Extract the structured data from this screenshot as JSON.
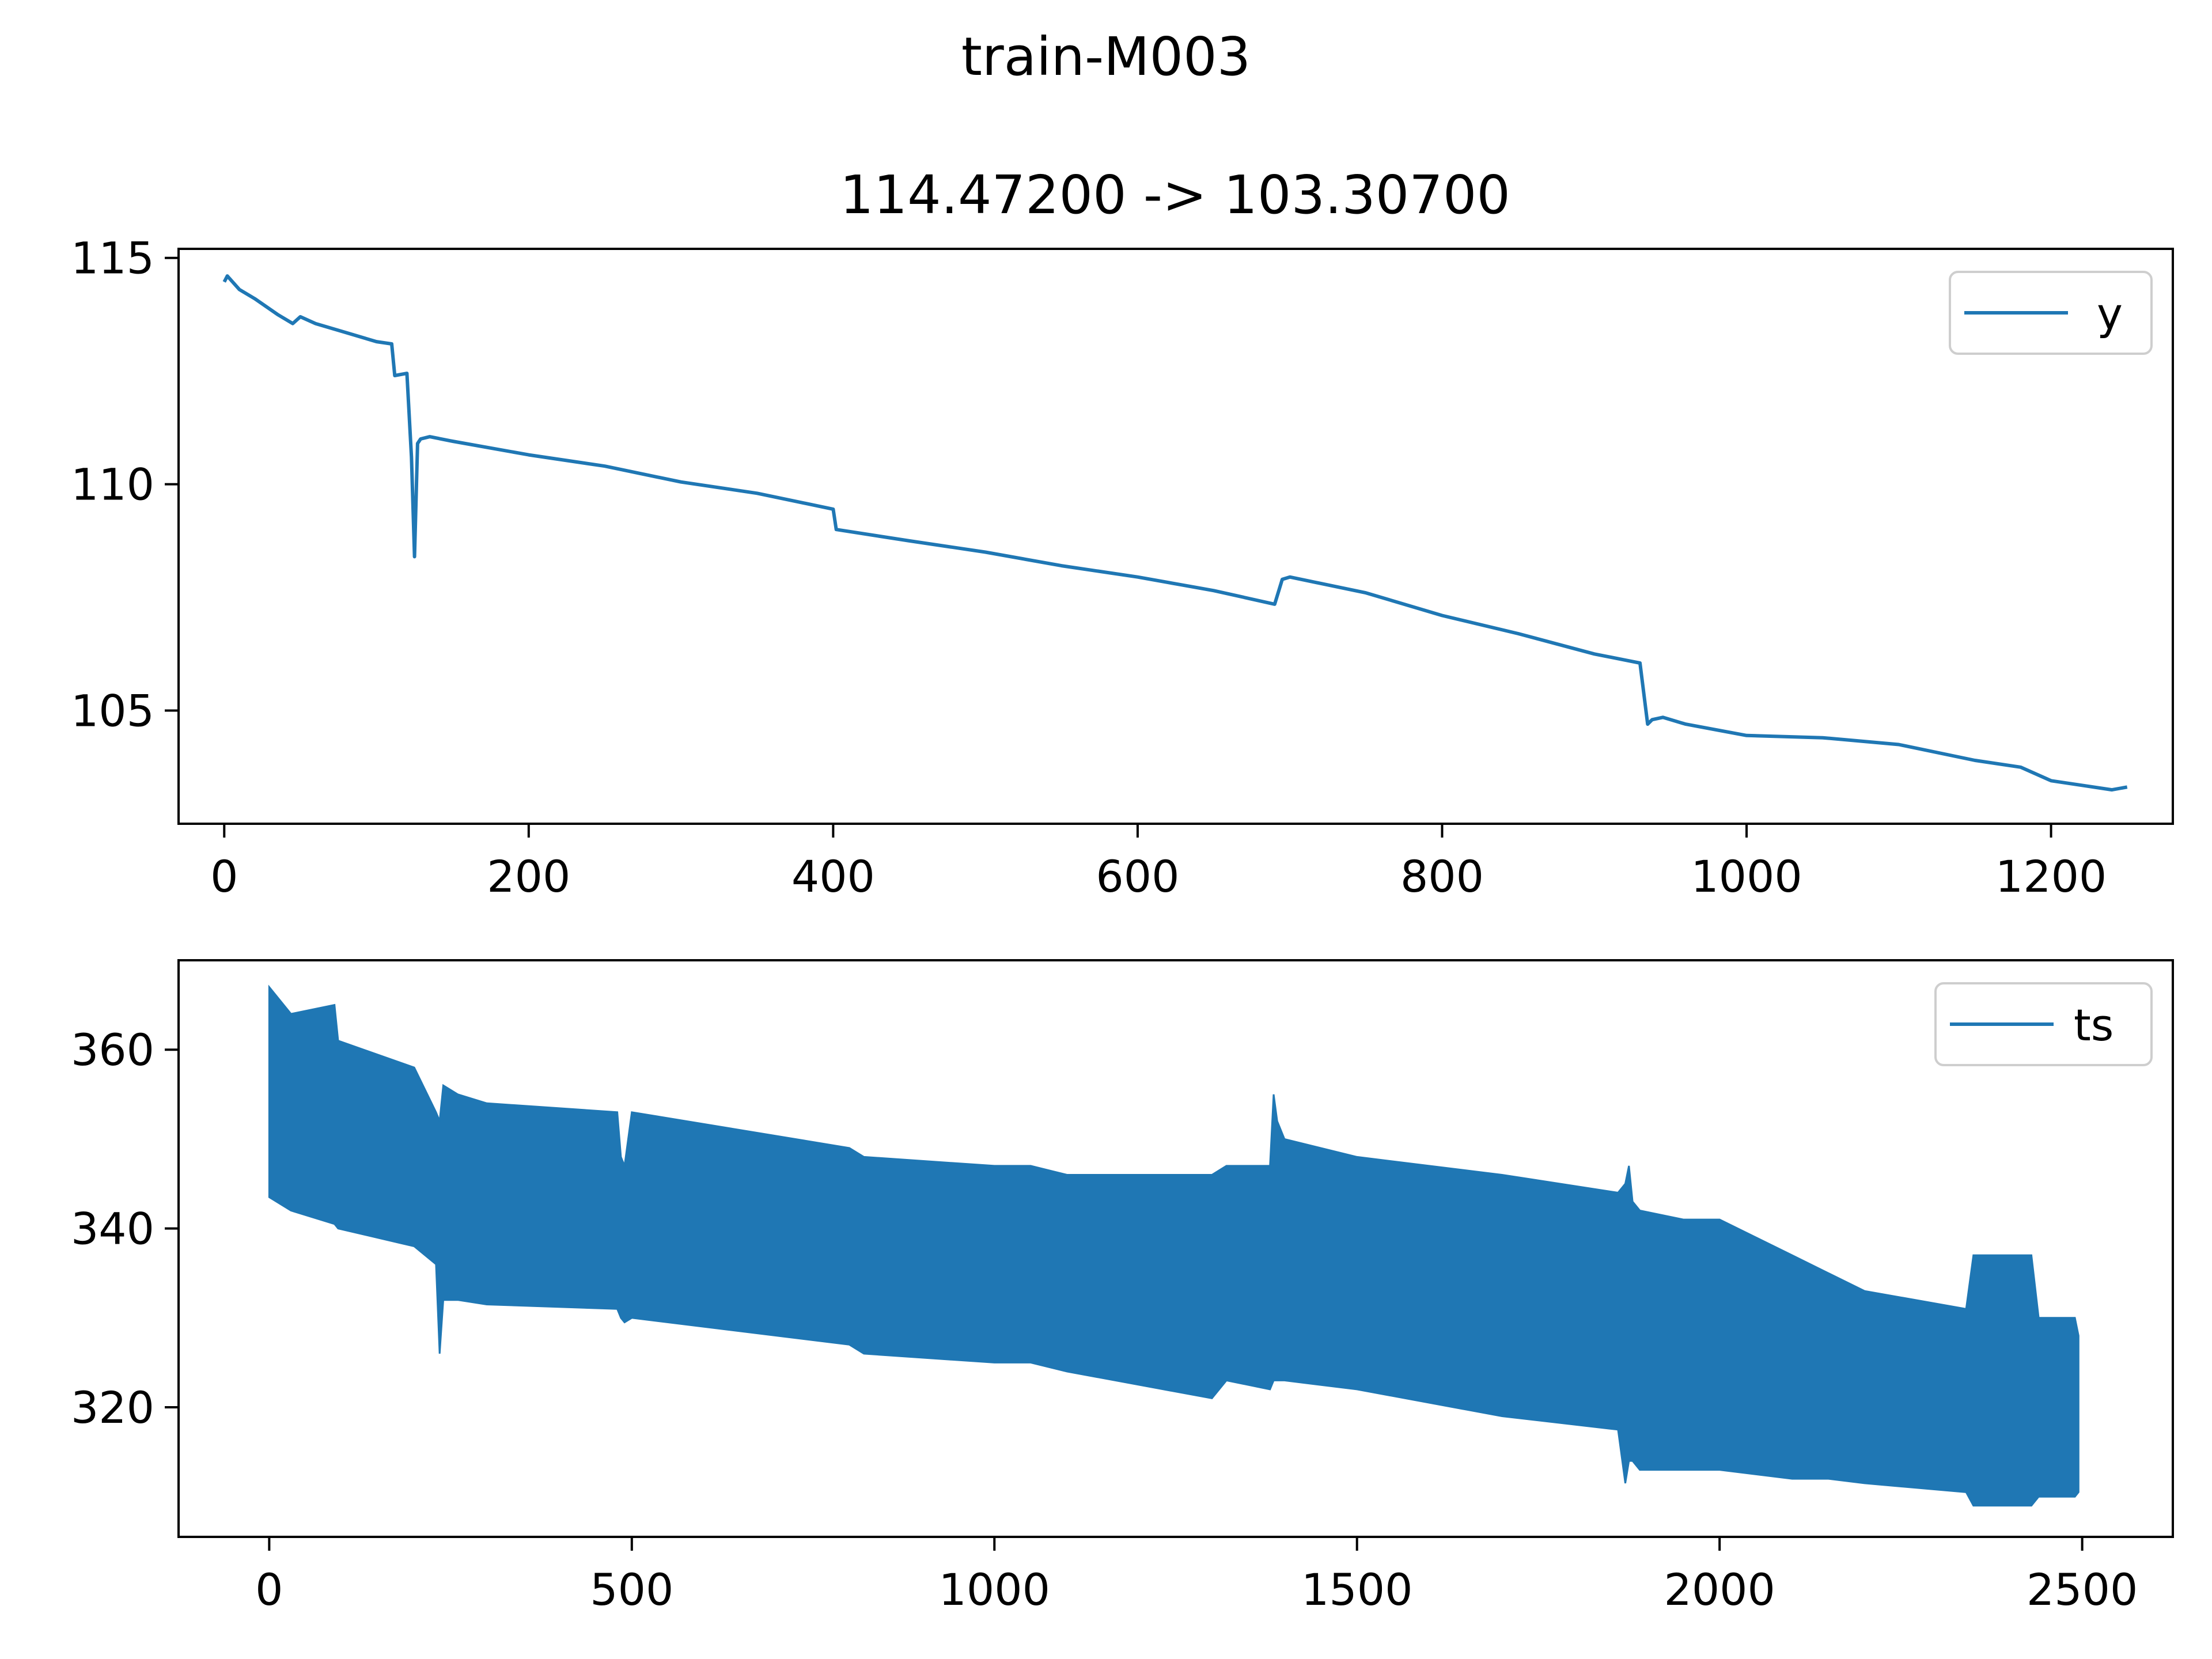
{
  "figure_title": "train-M003",
  "colors": {
    "series": "#1f77b4",
    "background": "#ffffff",
    "axes": "#000000",
    "legend_frame": "#cccccc"
  },
  "chart_data": [
    {
      "type": "line",
      "title": "114.47200 -> 103.30700",
      "xlabel": "",
      "ylabel": "",
      "xlim": [
        -30,
        1280
      ],
      "ylim": [
        102.5,
        115.2
      ],
      "x_ticks": [
        0,
        200,
        400,
        600,
        800,
        1000,
        1200
      ],
      "x_tick_labels": [
        "0",
        "200",
        "400",
        "600",
        "800",
        "1000",
        "1200"
      ],
      "y_ticks": [
        105,
        110,
        115
      ],
      "y_tick_labels": [
        "105",
        "110",
        "115"
      ],
      "grid": false,
      "legend_position": "top-right",
      "series": [
        {
          "name": "y",
          "x": [
            0,
            2,
            10,
            20,
            35,
            45,
            50,
            60,
            80,
            100,
            110,
            112,
            120,
            123,
            125,
            127,
            129,
            135,
            150,
            200,
            250,
            300,
            350,
            400,
            402,
            450,
            500,
            550,
            600,
            650,
            690,
            695,
            700,
            750,
            800,
            850,
            900,
            930,
            935,
            938,
            945,
            960,
            1000,
            1050,
            1100,
            1150,
            1180,
            1200,
            1220,
            1240,
            1250
          ],
          "y": [
            114.47,
            114.6,
            114.3,
            114.1,
            113.75,
            113.55,
            113.7,
            113.55,
            113.35,
            113.15,
            113.1,
            112.4,
            112.45,
            110.6,
            108.4,
            110.9,
            111.0,
            111.05,
            110.95,
            110.65,
            110.4,
            110.05,
            109.8,
            109.45,
            109.0,
            108.75,
            108.5,
            108.2,
            107.95,
            107.65,
            107.35,
            107.9,
            107.95,
            107.6,
            107.1,
            106.7,
            106.25,
            106.05,
            104.7,
            104.8,
            104.85,
            104.7,
            104.45,
            104.4,
            104.25,
            103.9,
            103.75,
            103.45,
            103.35,
            103.25,
            103.31
          ]
        }
      ]
    },
    {
      "type": "line",
      "title": "",
      "xlabel": "",
      "ylabel": "",
      "xlim": [
        -125,
        2625
      ],
      "ylim": [
        305.5,
        370
      ],
      "x_ticks": [
        0,
        500,
        1000,
        1500,
        2000,
        2500
      ],
      "x_tick_labels": [
        "0",
        "500",
        "1000",
        "1500",
        "2000",
        "2500"
      ],
      "y_ticks": [
        320,
        340,
        360
      ],
      "y_tick_labels": [
        "320",
        "340",
        "360"
      ],
      "grid": false,
      "legend_position": "top-right",
      "series": [
        {
          "name": "ts",
          "x": [
            0,
            30,
            90,
            95,
            200,
            230,
            235,
            240,
            260,
            300,
            480,
            485,
            490,
            500,
            800,
            820,
            1000,
            1050,
            1100,
            1300,
            1320,
            1380,
            1385,
            1390,
            1400,
            1500,
            1700,
            1860,
            1870,
            1875,
            1880,
            1890,
            1950,
            2000,
            2100,
            2150,
            2200,
            2340,
            2350,
            2430,
            2440,
            2490,
            2495
          ],
          "upper": [
            367,
            364,
            365,
            361,
            358,
            353,
            352,
            356,
            355,
            354,
            353,
            348,
            347,
            353,
            349,
            348,
            347,
            347,
            346,
            346,
            347,
            347,
            355,
            352,
            350,
            348,
            346,
            344,
            345,
            347,
            343,
            342,
            341,
            341,
            337,
            335,
            333,
            331,
            337,
            337,
            330,
            330,
            328
          ],
          "lower": [
            343.5,
            342,
            340.5,
            340,
            338,
            336,
            326,
            332,
            332,
            331.5,
            331,
            330,
            329.5,
            330,
            327,
            326,
            325,
            325,
            324,
            321,
            323,
            322,
            323,
            323,
            323,
            322,
            319,
            317.5,
            311.5,
            314,
            314,
            313,
            313,
            313,
            312,
            312,
            311.5,
            310.5,
            309,
            309,
            310,
            310,
            310.5
          ]
        }
      ]
    }
  ]
}
